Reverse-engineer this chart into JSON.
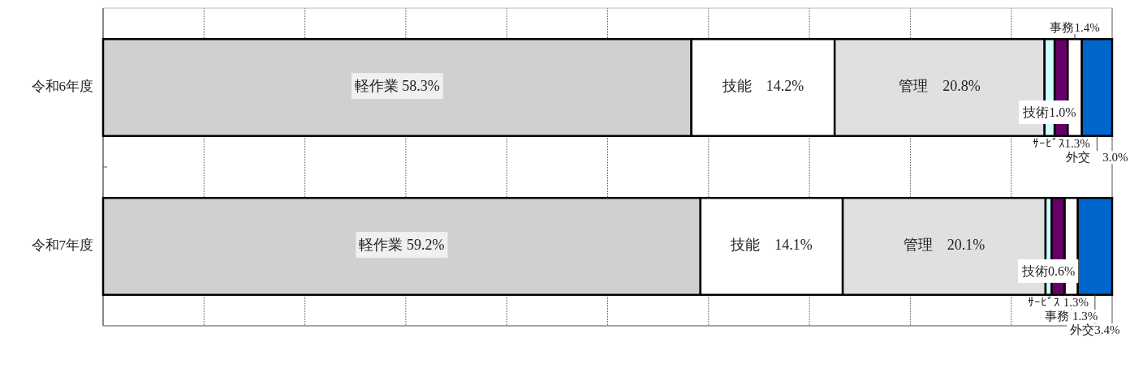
{
  "chart_data": {
    "type": "bar",
    "orientation": "horizontal",
    "stacked": true,
    "categories": [
      "令和6年度",
      "令和7年度"
    ],
    "xlim": [
      0,
      100
    ],
    "xticks": [
      {
        "value": 0,
        "label": null
      },
      {
        "value": 10,
        "label": null
      },
      {
        "value": 20,
        "label": null
      },
      {
        "value": 30,
        "label": null
      },
      {
        "value": 40,
        "label": null
      },
      {
        "value": 50,
        "label": null
      },
      {
        "value": 60,
        "label": null
      },
      {
        "value": 70,
        "label": null
      },
      {
        "value": 80,
        "label": null
      },
      {
        "value": 90,
        "label": null
      },
      {
        "value": 100,
        "label": null
      }
    ],
    "grid": "x",
    "legend": false,
    "series": [
      {
        "color": "#d0d0d0",
        "values": [
          58.3,
          59.2
        ],
        "value_labels": [
          "軽作業 58.3%",
          "軽作業 59.2%"
        ]
      },
      {
        "color": "#ffffff",
        "values": [
          14.2,
          14.1
        ],
        "value_labels": [
          "技能　14.2%",
          "技能　14.1%"
        ]
      },
      {
        "color": "#e0e0e0",
        "values": [
          20.8,
          20.1
        ],
        "value_labels": [
          "管理　20.8%",
          "管理　20.1%"
        ]
      },
      {
        "color": "#ccffff",
        "values": [
          1.0,
          0.6
        ],
        "value_labels": [
          "技術1.0%",
          "技術0.6%"
        ]
      },
      {
        "color": "#660066",
        "values": [
          1.3,
          1.3
        ],
        "value_labels": [
          "ｻｰﾋﾞｽ1.3%",
          "ｻｰﾋﾞｽ 1.3%"
        ]
      },
      {
        "color": "#ffffff",
        "values": [
          1.4,
          1.3
        ],
        "value_labels": [
          "事務1.4%",
          "事務 1.3%"
        ]
      },
      {
        "color": "#0066cc",
        "values": [
          3.0,
          3.4
        ],
        "value_labels": [
          "外交　3.0%",
          "外交3.4%"
        ]
      }
    ]
  }
}
